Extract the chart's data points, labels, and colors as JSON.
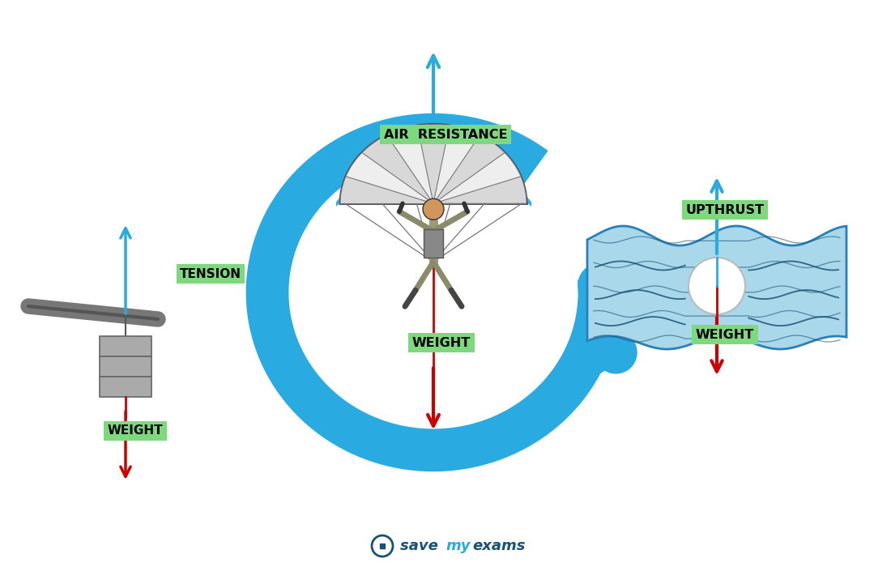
{
  "bg_color": "#ffffff",
  "label_bg": "#7ed87e",
  "arrow_up_color": "#29abe2",
  "arrow_down_color": "#cc0000",
  "label_font_color": "#000000",
  "label_fontsize": 11,
  "labels": {
    "tension": "TENSION",
    "weight_left": "WEIGHT",
    "air_resistance": "AIR  RESISTANCE",
    "weight_center": "WEIGHT",
    "upthrust": "UPTHRUST",
    "weight_right": "WEIGHT"
  },
  "blue_arc_color": "#29abe2",
  "water_fill": "#a8d8ea",
  "water_edge": "#2980b9",
  "rod_color": "#777777",
  "block_color": "#aaaaaa",
  "block_edge": "#666666",
  "parachute_light": "#e0e0e0",
  "parachute_dark": "#c0c0c0",
  "parachute_edge": "#444444",
  "person_skin": "#D2955A",
  "person_body": "#8B8B6B",
  "savemyexams_color": "#1a5276",
  "figsize": [
    11.0,
    7.16
  ],
  "dpi": 100
}
